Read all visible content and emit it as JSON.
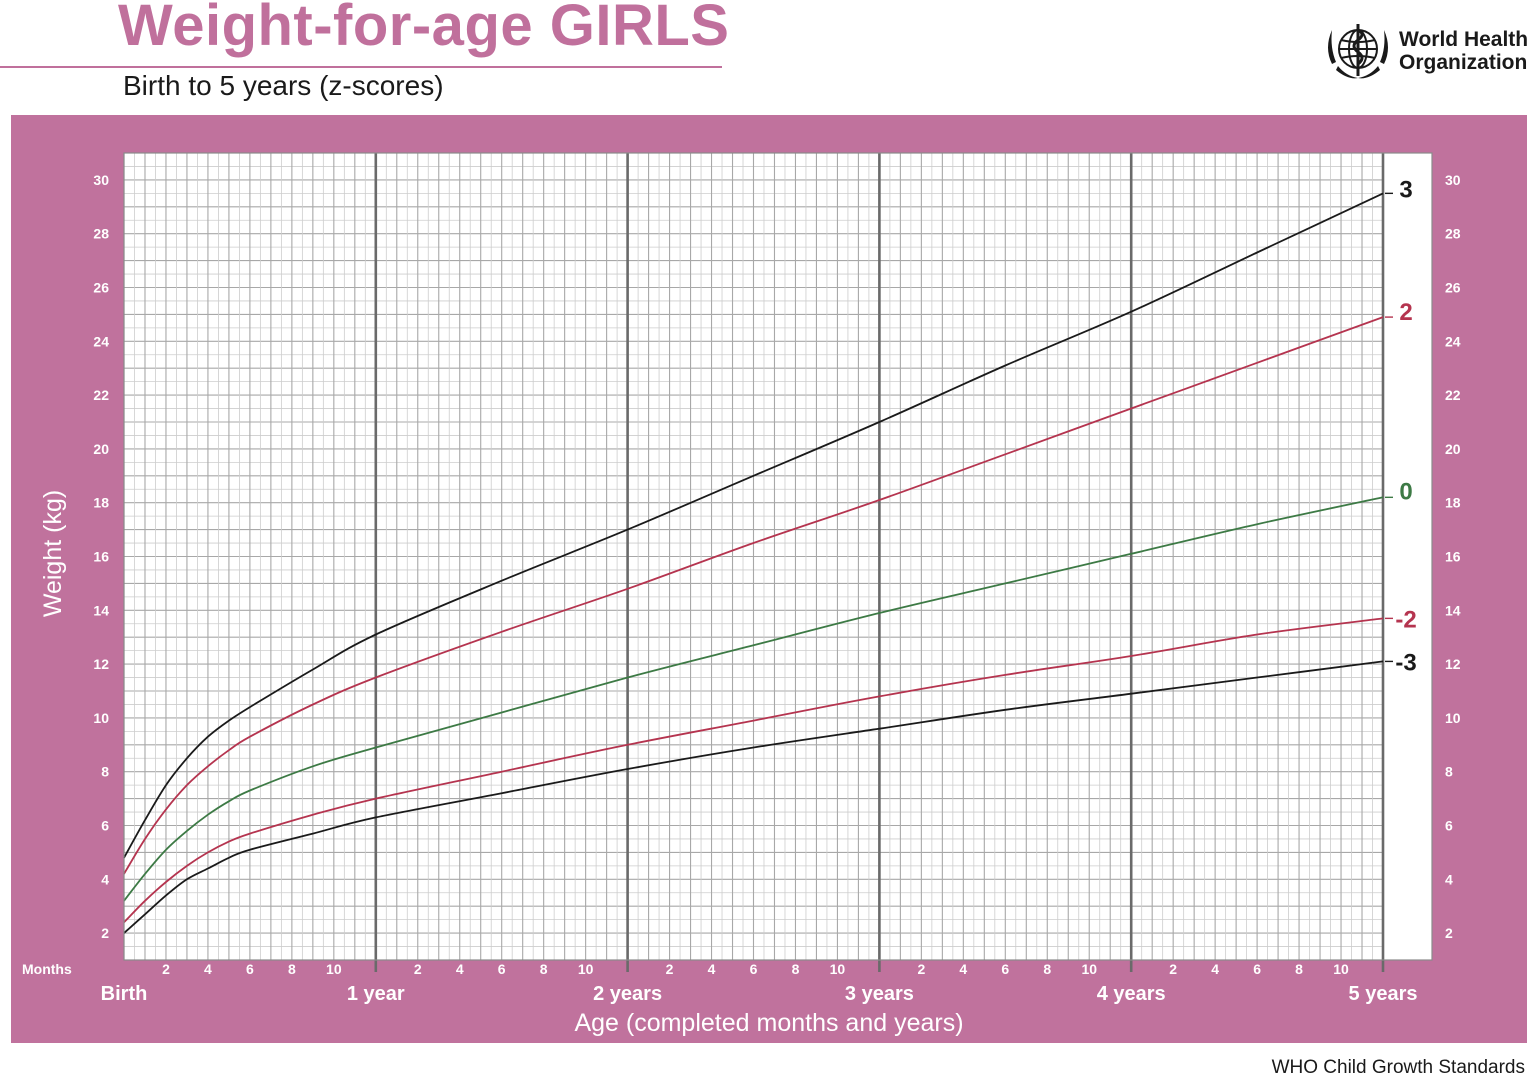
{
  "header": {
    "title": "Weight-for-age GIRLS",
    "subtitle": "Birth to 5 years (z-scores)",
    "org_line1": "World Health",
    "org_line2": "Organization",
    "logo_icon": "who-emblem-icon"
  },
  "footer": {
    "text": "WHO Child Growth Standards"
  },
  "colors": {
    "brand_pink": "#c0709c",
    "panel_pink": "#c0729d",
    "z_black": "#1a1a1a",
    "z_red": "#b5344f",
    "z_green": "#3d7a45"
  },
  "chart_data": {
    "type": "line",
    "ylabel": "Weight (kg)",
    "xlabel": "Age (completed months and years)",
    "x_unit": "months",
    "xlim": [
      0,
      60
    ],
    "ylim": [
      1,
      31
    ],
    "grid": true,
    "y_ticks": [
      2,
      4,
      6,
      8,
      10,
      12,
      14,
      16,
      18,
      20,
      22,
      24,
      26,
      28,
      30
    ],
    "months_label": "Months",
    "month_ticks": [
      2,
      4,
      6,
      8,
      10
    ],
    "year_labels": [
      {
        "month": 0,
        "label": "Birth"
      },
      {
        "month": 12,
        "label": "1 year"
      },
      {
        "month": 24,
        "label": "2 years"
      },
      {
        "month": 36,
        "label": "3 years"
      },
      {
        "month": 48,
        "label": "4 years"
      },
      {
        "month": 60,
        "label": "5 years"
      }
    ],
    "x": [
      0,
      1,
      2,
      3,
      4,
      5,
      6,
      9,
      12,
      18,
      24,
      30,
      36,
      42,
      48,
      54,
      60
    ],
    "series": [
      {
        "name": "3",
        "color": "#1a1a1a",
        "values": [
          4.8,
          6.2,
          7.5,
          8.5,
          9.3,
          9.9,
          10.4,
          11.8,
          13.1,
          15.1,
          17.0,
          19.0,
          21.0,
          23.1,
          25.1,
          27.3,
          29.5
        ]
      },
      {
        "name": "2",
        "color": "#b5344f",
        "values": [
          4.2,
          5.5,
          6.6,
          7.5,
          8.2,
          8.8,
          9.3,
          10.5,
          11.5,
          13.2,
          14.8,
          16.5,
          18.1,
          19.8,
          21.5,
          23.2,
          24.9
        ]
      },
      {
        "name": "0",
        "color": "#3d7a45",
        "values": [
          3.2,
          4.2,
          5.1,
          5.8,
          6.4,
          6.9,
          7.3,
          8.2,
          8.9,
          10.2,
          11.5,
          12.7,
          13.9,
          15.0,
          16.1,
          17.2,
          18.2
        ]
      },
      {
        "name": "-2",
        "color": "#b5344f",
        "values": [
          2.4,
          3.2,
          3.9,
          4.5,
          5.0,
          5.4,
          5.7,
          6.4,
          7.0,
          8.0,
          9.0,
          9.9,
          10.8,
          11.6,
          12.3,
          13.1,
          13.7
        ]
      },
      {
        "name": "-3",
        "color": "#1a1a1a",
        "values": [
          2.0,
          2.7,
          3.4,
          4.0,
          4.4,
          4.8,
          5.1,
          5.7,
          6.3,
          7.2,
          8.1,
          8.9,
          9.6,
          10.3,
          10.9,
          11.5,
          12.1
        ]
      }
    ]
  }
}
